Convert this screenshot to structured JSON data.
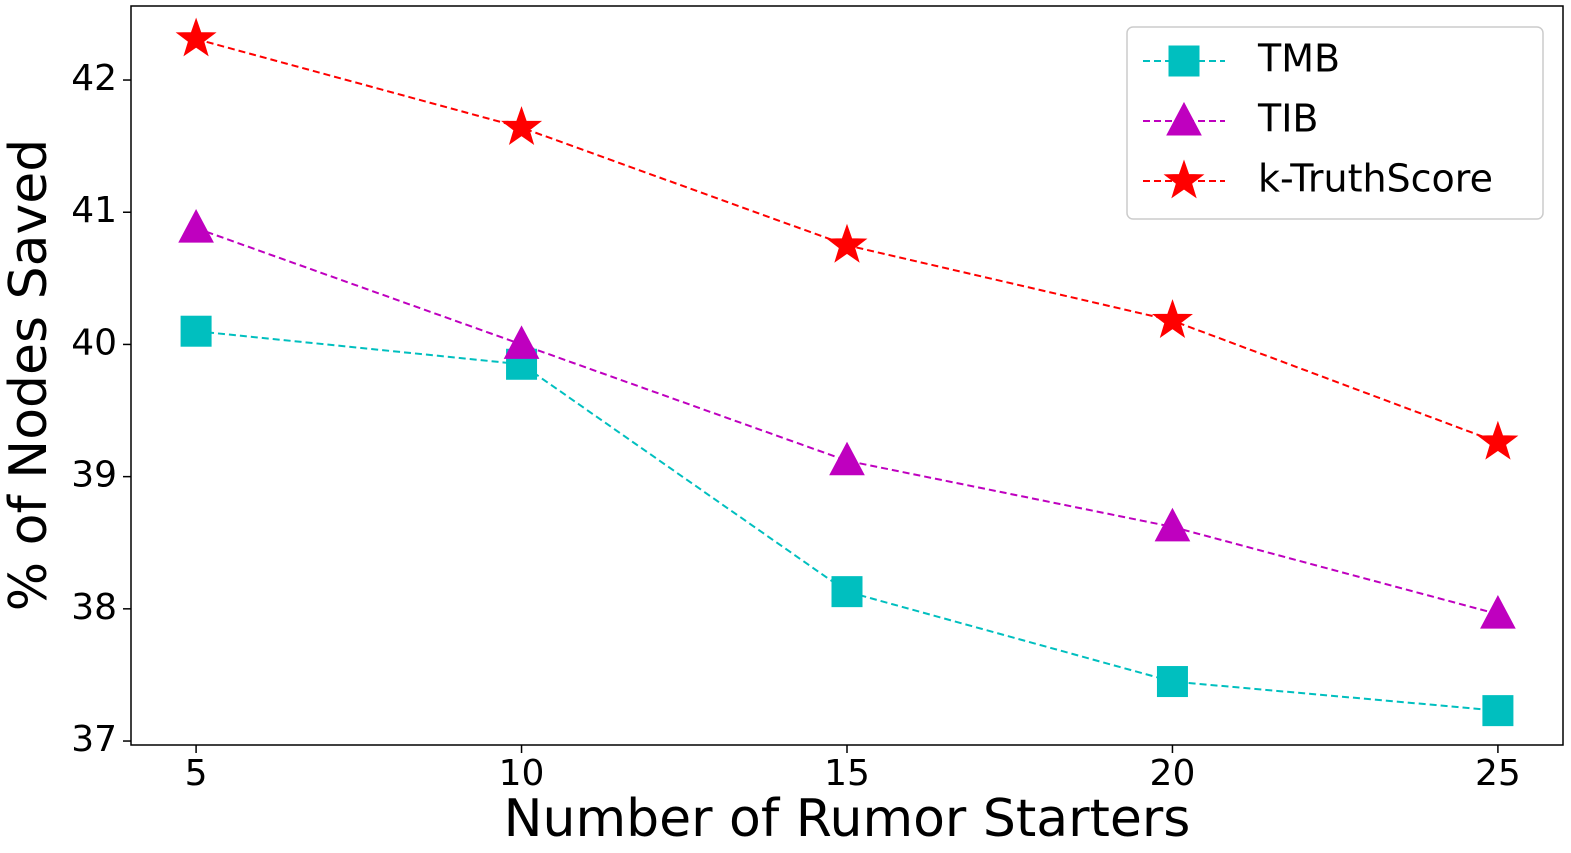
{
  "chart_data": {
    "type": "line",
    "xlabel": "Number of Rumor Starters",
    "ylabel": "% of Nodes Saved",
    "x": [
      5,
      10,
      15,
      20,
      25
    ],
    "series": [
      {
        "name": "TMB",
        "color": "#00bfbf",
        "marker": "square",
        "values": [
          40.1,
          39.85,
          38.13,
          37.45,
          37.23
        ]
      },
      {
        "name": "TIB",
        "color": "#bf00bf",
        "marker": "triangle",
        "values": [
          40.88,
          40.0,
          39.12,
          38.62,
          37.96
        ]
      },
      {
        "name": "k-TruthScore",
        "color": "#ff0000",
        "marker": "star",
        "values": [
          42.31,
          41.64,
          40.75,
          40.18,
          39.26
        ]
      }
    ],
    "xlim": [
      4,
      26
    ],
    "ylim": [
      36.97,
      42.56
    ],
    "xticks": [
      5,
      10,
      15,
      20,
      25
    ],
    "yticks": [
      37,
      38,
      39,
      40,
      41,
      42
    ],
    "legend": "upper right"
  }
}
